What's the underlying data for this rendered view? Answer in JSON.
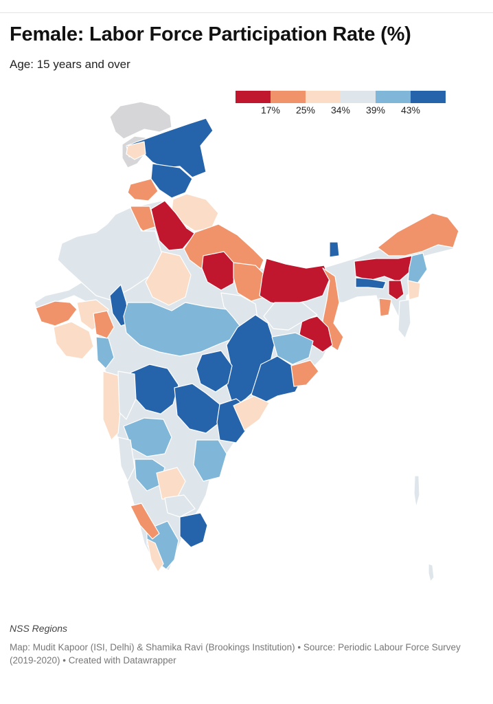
{
  "header": {
    "title": "Female: Labor Force Participation Rate (%)",
    "subtitle": "Age: 15 years and over"
  },
  "legend": {
    "colors": [
      "#c0162e",
      "#f0936b",
      "#fbdcc6",
      "#dfe6eb",
      "#80b6d8",
      "#2563ab"
    ],
    "ticks": [
      "17%",
      "25%",
      "34%",
      "39%",
      "43%"
    ]
  },
  "map": {
    "type": "choropleth",
    "region": "India",
    "unit": "NSS Regions",
    "no_data_color": "#d6d6d8",
    "boundary_color": "#ffffff",
    "regions_by_bin": {
      "below_17": [
        "western Uttar Pradesh / Haryana belt",
        "south-central Uttar Pradesh",
        "Bihar",
        "Jharkhand east",
        "Assam / Meghalaya"
      ],
      "17_25": [
        "Punjab",
        "eastern Uttar Pradesh",
        "Saurashtra (Gujarat)",
        "Kerala north",
        "Arunachal Pradesh",
        "Odisha north coast"
      ],
      "25_34": [
        "Rajasthan east",
        "Gujarat",
        "Konkan",
        "Tamil Nadu coast",
        "Tripura / Mizoram"
      ],
      "34_39": [
        "Rajasthan west",
        "central India",
        "Karnataka north",
        "West Bengal"
      ],
      "39_43": [
        "Madhya Pradesh",
        "Maharashtra west",
        "Karnataka",
        "Tamil Nadu interior"
      ],
      "above_43": [
        "Jammu & Kashmir",
        "Himachal Pradesh",
        "Chhattisgarh",
        "Vidarbha",
        "Telangana",
        "Odisha interior",
        "Tamil Nadu north",
        "Sikkim"
      ]
    }
  },
  "footer": {
    "notes": "NSS Regions",
    "byline": "Map: Mudit Kapoor (ISI, Delhi) & Shamika Ravi (Brookings Institution) • Source: Periodic Labour Force Survey (2019-2020) • Created with Datawrapper"
  }
}
